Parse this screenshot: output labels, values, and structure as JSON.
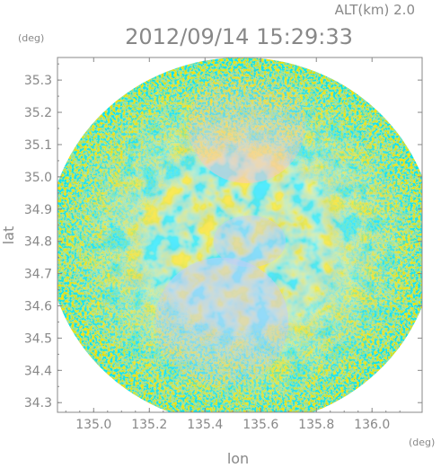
{
  "header": {
    "altitude_label": "ALT(km) 2.0",
    "timestamp": "2012/09/14 15:29:33"
  },
  "chart_data": {
    "type": "heatmap",
    "title": "2012/09/14 15:29:33",
    "subtitle": "ALT(km) 2.0",
    "xlabel": "lon",
    "ylabel": "lat",
    "x_unit": "(deg)",
    "y_unit": "(deg)",
    "xlim": [
      134.87,
      136.18
    ],
    "ylim": [
      34.27,
      35.37
    ],
    "x_ticks": [
      135.0,
      135.2,
      135.4,
      135.6,
      135.8,
      136.0
    ],
    "x_tick_labels": [
      "135.0",
      "135.2",
      "135.4",
      "135.6",
      "135.8",
      "136.0"
    ],
    "y_ticks": [
      34.3,
      34.4,
      34.5,
      34.6,
      34.7,
      34.8,
      34.9,
      35.0,
      35.1,
      35.2,
      35.3
    ],
    "y_tick_labels": [
      "34.3",
      "34.4",
      "34.5",
      "34.6",
      "34.7",
      "34.8",
      "34.9",
      "35.0",
      "35.1",
      "35.2",
      "35.3"
    ],
    "domain": {
      "shape": "circle",
      "center_lon": 135.53,
      "center_lat": 34.8,
      "radius_lon": 0.695,
      "radius_lat": 0.57
    },
    "colors": {
      "positive": "#f5c8c8",
      "negative": "#c8cdf5",
      "neutral": "#eeeefa",
      "axis": "#888888"
    },
    "regions": [
      {
        "description": "north sector",
        "lon": 135.55,
        "lat": 35.15,
        "value": "positive"
      },
      {
        "description": "south-center sector",
        "lon": 135.45,
        "lat": 34.55,
        "value": "negative"
      },
      {
        "description": "center",
        "lon": 135.55,
        "lat": 34.8,
        "value": "negative"
      }
    ],
    "grid": false,
    "legend": "none"
  }
}
